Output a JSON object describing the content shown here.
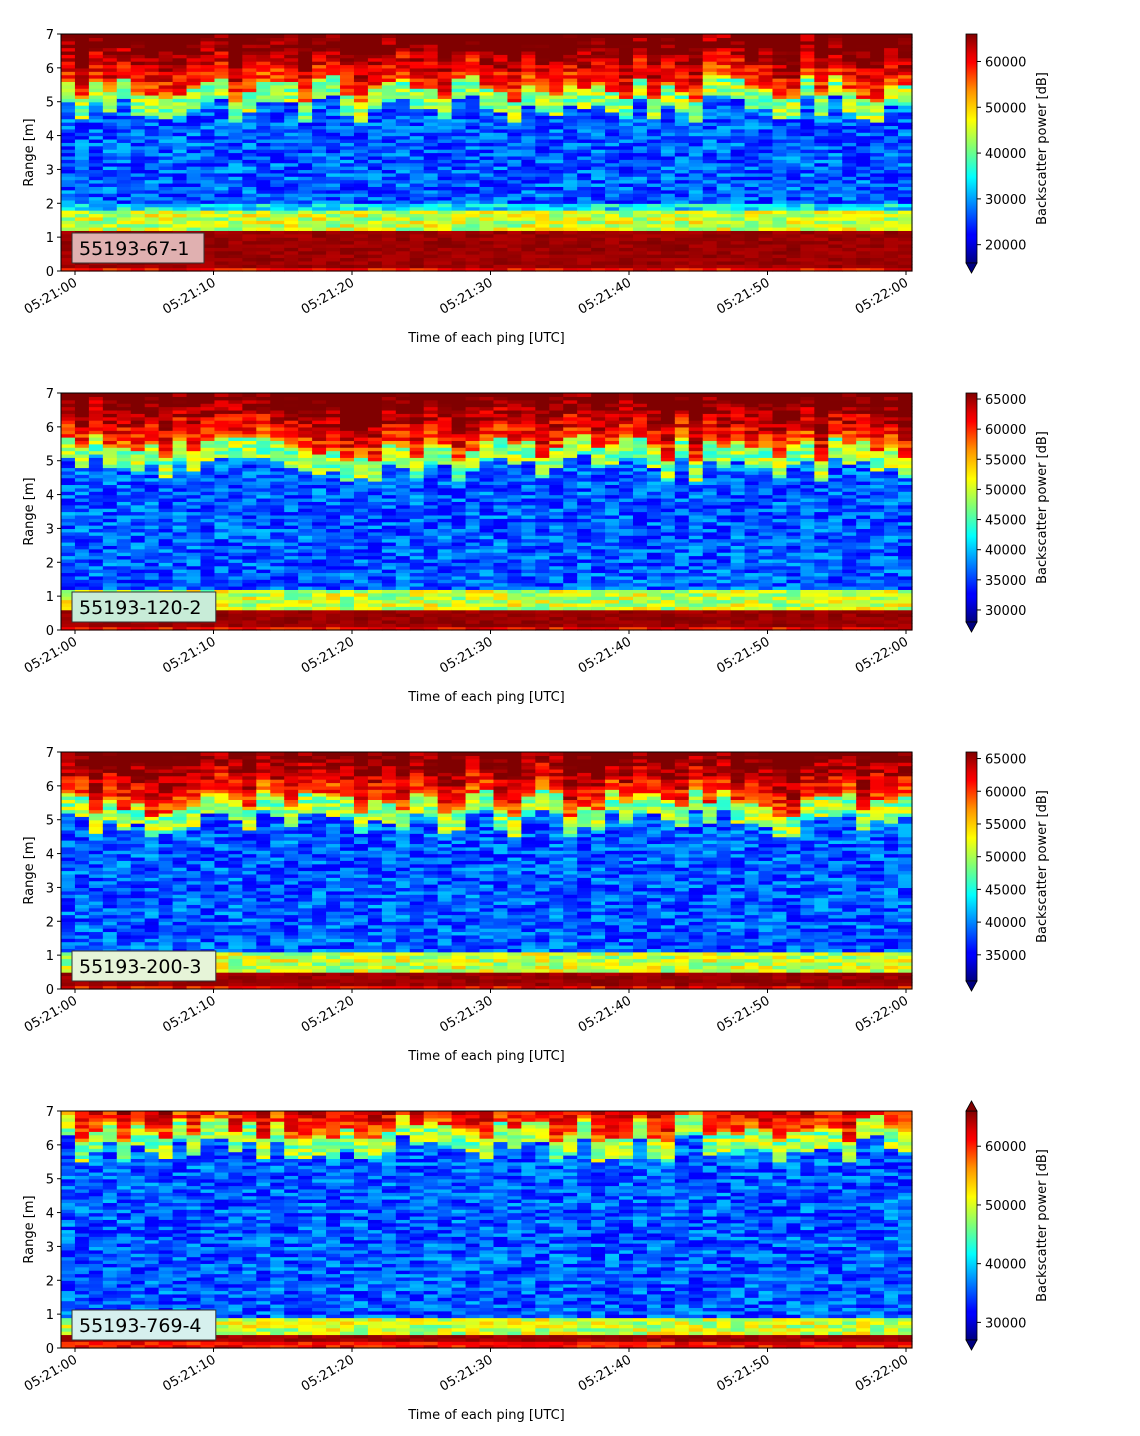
{
  "chart_data": [
    {
      "type": "heatmap",
      "label": "55193-67-1",
      "label_bg": "#e0b0b0",
      "xlabel": "Time of each ping [UTC]",
      "ylabel": "Range [m]",
      "ylim": [
        0,
        7
      ],
      "yticks": [
        "0",
        "1",
        "2",
        "3",
        "4",
        "5",
        "6",
        "7"
      ],
      "xticks": [
        "05:21:00",
        "05:21:10",
        "05:21:20",
        "05:21:30",
        "05:21:40",
        "05:21:50",
        "05:22:00"
      ],
      "colorbar_label": "Backscatter power [dB]",
      "clim": [
        16000,
        66000
      ],
      "colorbar_ticks": [
        "20000",
        "30000",
        "40000",
        "50000",
        "60000"
      ],
      "colorbar_tick_values": [
        20000,
        30000,
        40000,
        50000,
        60000
      ],
      "colorbar_extend": "min",
      "colormap": "jet",
      "surface_top_m": 5.3,
      "bottom_band_m": [
        0.15,
        1.2
      ]
    },
    {
      "type": "heatmap",
      "label": "55193-120-2",
      "label_bg": "#c8ecd8",
      "xlabel": "Time of each ping [UTC]",
      "ylabel": "Range [m]",
      "ylim": [
        0,
        7
      ],
      "yticks": [
        "0",
        "1",
        "2",
        "3",
        "4",
        "5",
        "6",
        "7"
      ],
      "xticks": [
        "05:21:00",
        "05:21:10",
        "05:21:20",
        "05:21:30",
        "05:21:40",
        "05:21:50",
        "05:22:00"
      ],
      "colorbar_label": "Backscatter power [dB]",
      "clim": [
        28000,
        66000
      ],
      "colorbar_ticks": [
        "30000",
        "35000",
        "40000",
        "45000",
        "50000",
        "55000",
        "60000",
        "65000"
      ],
      "colorbar_tick_values": [
        30000,
        35000,
        40000,
        45000,
        50000,
        55000,
        60000,
        65000
      ],
      "colorbar_extend": "min",
      "colormap": "jet",
      "surface_top_m": 5.3,
      "bottom_band_m": [
        0.1,
        0.6
      ]
    },
    {
      "type": "heatmap",
      "label": "55193-200-3",
      "label_bg": "#e6f4d8",
      "xlabel": "Time of each ping [UTC]",
      "ylabel": "Range [m]",
      "ylim": [
        0,
        7
      ],
      "yticks": [
        "0",
        "1",
        "2",
        "3",
        "4",
        "5",
        "6",
        "7"
      ],
      "xticks": [
        "05:21:00",
        "05:21:10",
        "05:21:20",
        "05:21:30",
        "05:21:40",
        "05:21:50",
        "05:22:00"
      ],
      "colorbar_label": "Backscatter power [dB]",
      "clim": [
        31000,
        66000
      ],
      "colorbar_ticks": [
        "35000",
        "40000",
        "45000",
        "50000",
        "55000",
        "60000",
        "65000"
      ],
      "colorbar_tick_values": [
        35000,
        40000,
        45000,
        50000,
        55000,
        60000,
        65000
      ],
      "colorbar_extend": "min",
      "colormap": "jet",
      "surface_top_m": 5.4,
      "bottom_band_m": [
        0.1,
        0.5
      ]
    },
    {
      "type": "heatmap",
      "label": "55193-769-4",
      "label_bg": "#d6f0ee",
      "xlabel": "Time of each ping [UTC]",
      "ylabel": "Range [m]",
      "ylim": [
        0,
        7
      ],
      "yticks": [
        "0",
        "1",
        "2",
        "3",
        "4",
        "5",
        "6",
        "7"
      ],
      "xticks": [
        "05:21:00",
        "05:21:10",
        "05:21:20",
        "05:21:30",
        "05:21:40",
        "05:21:50",
        "05:22:00"
      ],
      "colorbar_label": "Backscatter power [dB]",
      "clim": [
        27000,
        66000
      ],
      "colorbar_ticks": [
        "30000",
        "40000",
        "50000",
        "60000"
      ],
      "colorbar_tick_values": [
        30000,
        40000,
        50000,
        60000
      ],
      "colorbar_extend": "both",
      "colormap": "jet",
      "surface_top_m": 6.4,
      "bottom_band_m": [
        0.2,
        0.35
      ]
    }
  ]
}
